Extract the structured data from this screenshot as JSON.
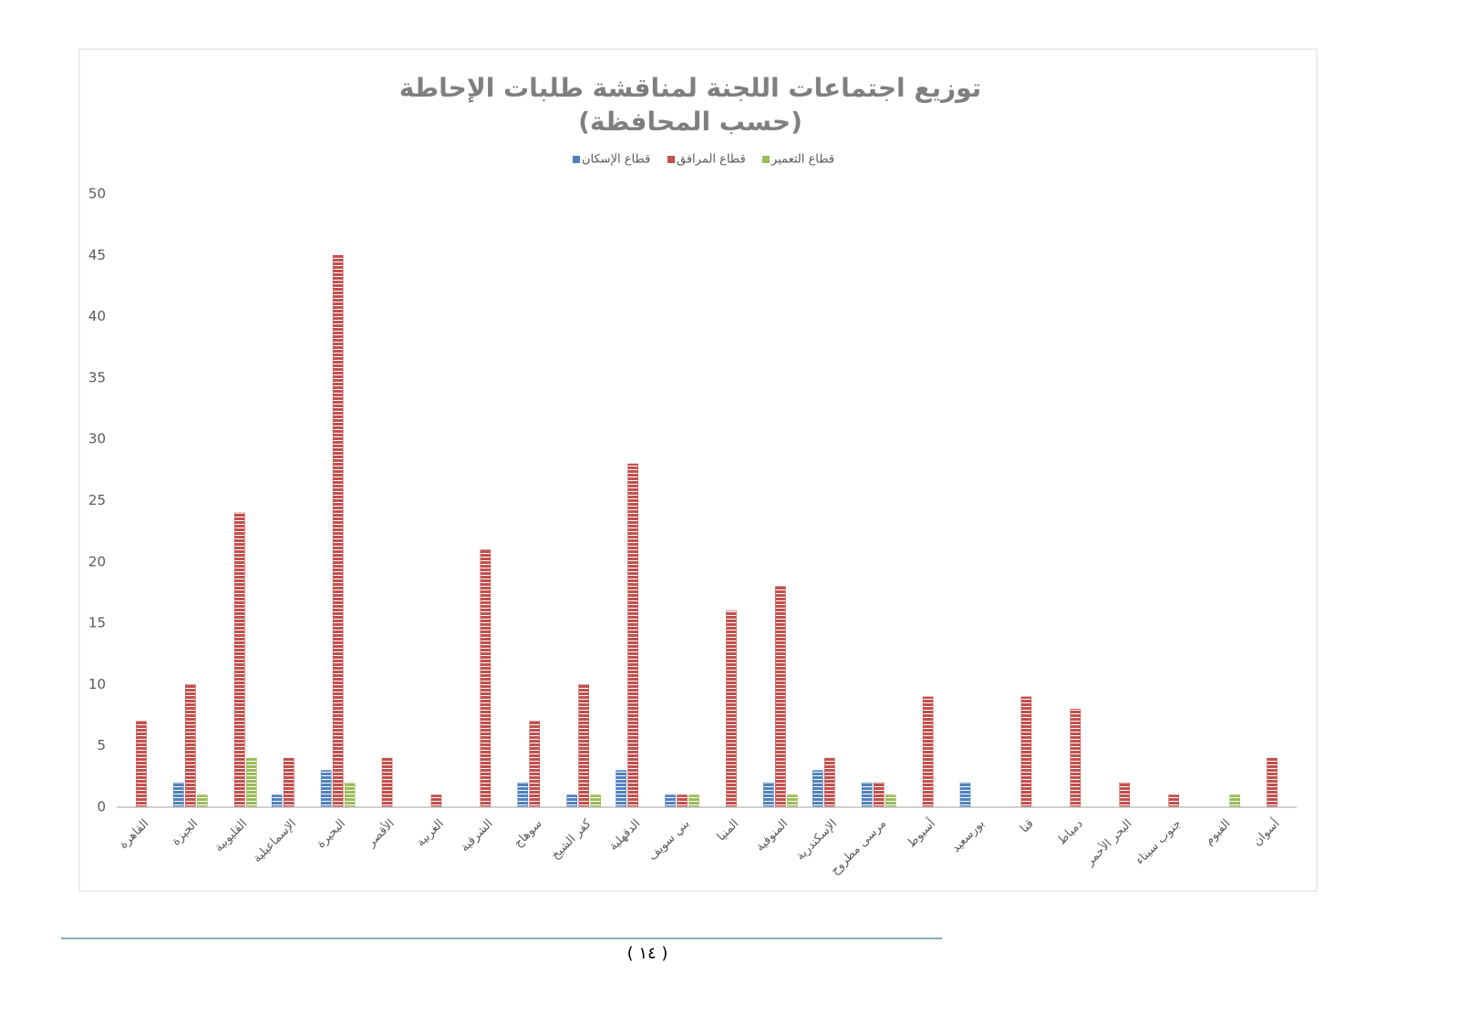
{
  "chart_data": {
    "type": "bar",
    "title": "توزيع اجتماعات اللجنة لمناقشة طلبات الإحاطة",
    "subtitle": "(حسب المحافظة)",
    "categories": [
      "القاهرة",
      "الجيزة",
      "القليوبية",
      "الإسماعيلية",
      "البحيرة",
      "الأقصر",
      "الغربية",
      "الشرقية",
      "سوهاج",
      "كفر الشيخ",
      "الدقهلية",
      "بني سويف",
      "المنيا",
      "المنوفية",
      "الإسكندرية",
      "مرسى مطروح",
      "أسيوط",
      "بورسعيد",
      "قنا",
      "دمياط",
      "البحر الأحمر",
      "جنوب سيناء",
      "الفيوم",
      "أسوان"
    ],
    "series": [
      {
        "name": "قطاع الإسكان",
        "color": "#4f81bd",
        "values": [
          0,
          2,
          0,
          1,
          3,
          0,
          0,
          0,
          2,
          1,
          3,
          1,
          0,
          2,
          3,
          2,
          0,
          2,
          0,
          0,
          0,
          0,
          0,
          0
        ]
      },
      {
        "name": "قطاع المرافق",
        "color": "#c0504d",
        "values": [
          7,
          10,
          24,
          4,
          45,
          4,
          1,
          21,
          7,
          10,
          28,
          1,
          16,
          18,
          4,
          2,
          9,
          0,
          9,
          8,
          2,
          1,
          0,
          4
        ]
      },
      {
        "name": "قطاع التعمير",
        "color": "#9bbb59",
        "values": [
          0,
          1,
          4,
          0,
          2,
          0,
          0,
          0,
          0,
          1,
          0,
          1,
          0,
          1,
          0,
          1,
          0,
          0,
          0,
          0,
          0,
          0,
          1,
          0
        ]
      }
    ],
    "ylim": [
      0,
      50
    ],
    "yticks": [
      0,
      5,
      10,
      15,
      20,
      25,
      30,
      35,
      40,
      45,
      50
    ],
    "grid": false
  },
  "footer": {
    "page_number": "( ١٤ )"
  }
}
